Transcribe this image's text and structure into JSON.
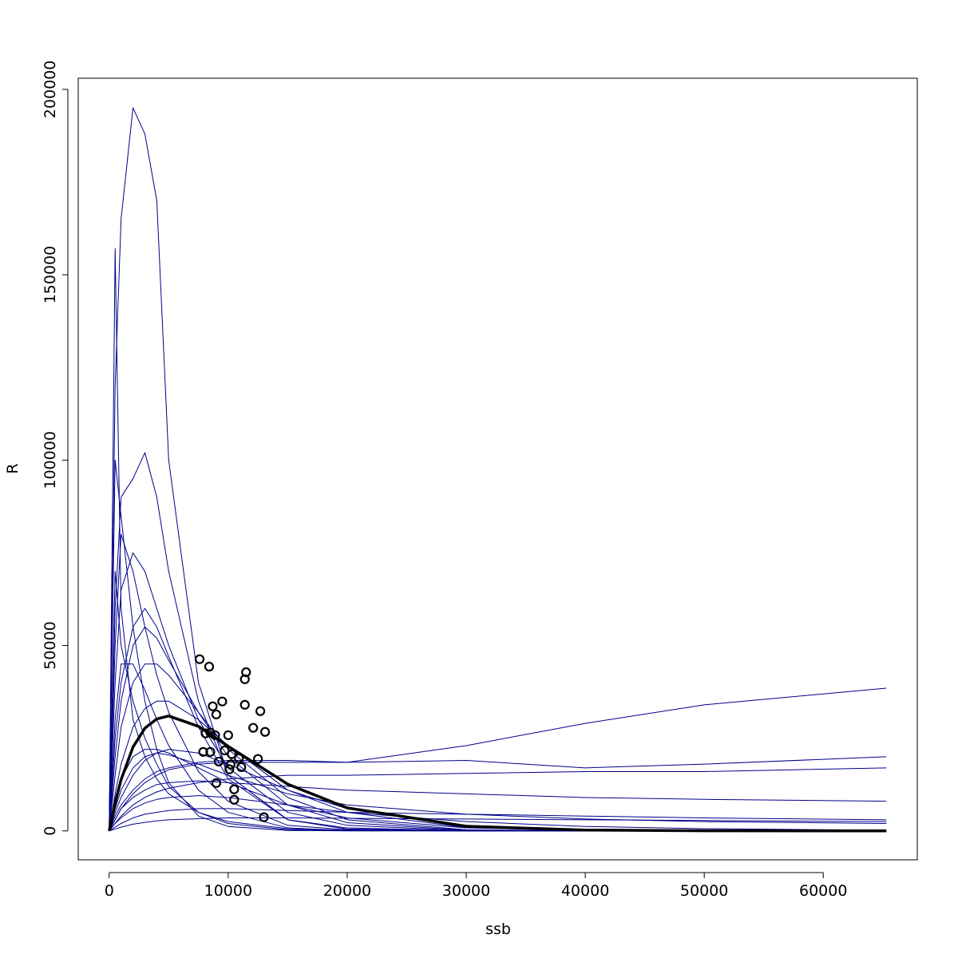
{
  "chart_data": {
    "type": "line",
    "xlabel": "ssb",
    "ylabel": "R",
    "xlim": [
      -2600,
      67900
    ],
    "ylim": [
      -7800,
      203000
    ],
    "xticks": [
      0,
      10000,
      20000,
      30000,
      40000,
      50000,
      60000
    ],
    "yticks": [
      0,
      50000,
      100000,
      150000,
      200000
    ],
    "x": [
      0,
      500,
      1000,
      2000,
      3000,
      4000,
      5000,
      7500,
      10000,
      15000,
      20000,
      30000,
      40000,
      50000,
      65300
    ],
    "series": [
      {
        "color": "#00008b",
        "linewidth": 1,
        "values": [
          0,
          120000,
          165000,
          195000,
          188000,
          170000,
          100000,
          40000,
          15000,
          3000,
          800,
          50,
          5,
          0,
          0
        ]
      },
      {
        "color": "#00008b",
        "linewidth": 1,
        "values": [
          0,
          157000,
          60000,
          30000,
          20000,
          14000,
          10000,
          5000,
          2500,
          600,
          150,
          10,
          0,
          0,
          0
        ]
      },
      {
        "color": "#00008b",
        "linewidth": 1,
        "values": [
          0,
          60000,
          90000,
          95000,
          102000,
          90000,
          70000,
          35000,
          15000,
          3000,
          500,
          20,
          0,
          0,
          0
        ]
      },
      {
        "color": "#00008b",
        "linewidth": 1,
        "values": [
          0,
          3000,
          6000,
          10000,
          13000,
          15000,
          16500,
          18000,
          18500,
          18500,
          18500,
          23000,
          29000,
          34000,
          38500
        ]
      },
      {
        "color": "#00008b",
        "linewidth": 1,
        "values": [
          0,
          4000,
          7000,
          11000,
          14000,
          16000,
          17000,
          18500,
          19000,
          19000,
          18500,
          19000,
          17000,
          18000,
          20000
        ]
      },
      {
        "color": "#00008b",
        "linewidth": 1,
        "values": [
          0,
          2000,
          4000,
          7000,
          9000,
          10500,
          11500,
          13000,
          14000,
          15000,
          15000,
          15500,
          16000,
          16000,
          17000
        ]
      },
      {
        "color": "#00008b",
        "linewidth": 1,
        "values": [
          0,
          3000,
          6000,
          9000,
          11000,
          12500,
          13000,
          13500,
          13000,
          12000,
          11000,
          10000,
          9000,
          8500,
          8000
        ]
      },
      {
        "color": "#00008b",
        "linewidth": 1,
        "values": [
          0,
          40000,
          65000,
          75000,
          70000,
          60000,
          50000,
          30000,
          17000,
          5000,
          1500,
          100,
          10,
          0,
          0
        ]
      },
      {
        "color": "#00008b",
        "linewidth": 1,
        "values": [
          0,
          50000,
          80000,
          70000,
          55000,
          42000,
          32000,
          16000,
          8000,
          1500,
          300,
          10,
          0,
          0,
          0
        ]
      },
      {
        "color": "#00008b",
        "linewidth": 1,
        "values": [
          0,
          20000,
          35000,
          50000,
          55000,
          52000,
          46000,
          32000,
          20000,
          7000,
          2200,
          200,
          20,
          2,
          0
        ]
      },
      {
        "color": "#00008b",
        "linewidth": 1,
        "values": [
          0,
          10000,
          18000,
          28000,
          33000,
          35000,
          35000,
          30000,
          23000,
          11000,
          5000,
          900,
          150,
          20,
          1
        ]
      },
      {
        "color": "#00008b",
        "linewidth": 1,
        "values": [
          0,
          5000,
          9000,
          15000,
          19000,
          21000,
          22000,
          21000,
          18000,
          11000,
          6000,
          1500,
          300,
          60,
          5
        ]
      },
      {
        "color": "#00008b",
        "linewidth": 1,
        "values": [
          0,
          8000,
          14000,
          20000,
          22000,
          22000,
          21000,
          17000,
          13000,
          7000,
          3500,
          800,
          200,
          40,
          5
        ]
      },
      {
        "color": "#00008b",
        "linewidth": 1,
        "values": [
          0,
          2000,
          3500,
          6000,
          7500,
          8500,
          9000,
          9500,
          9000,
          7000,
          5000,
          2500,
          1200,
          600,
          200
        ]
      },
      {
        "color": "#00008b",
        "linewidth": 1,
        "values": [
          0,
          1000,
          2000,
          3500,
          4500,
          5000,
          5500,
          6000,
          6000,
          5500,
          5000,
          4500,
          4000,
          3500,
          3000
        ]
      },
      {
        "color": "#00008b",
        "linewidth": 1,
        "values": [
          0,
          30000,
          45000,
          45000,
          38000,
          30000,
          23000,
          11000,
          5000,
          800,
          100,
          3,
          0,
          0,
          0
        ]
      },
      {
        "color": "#00008b",
        "linewidth": 1,
        "values": [
          0,
          70000,
          50000,
          35000,
          25000,
          18000,
          12000,
          5000,
          2000,
          300,
          40,
          1,
          0,
          0,
          0
        ]
      },
      {
        "color": "#00008b",
        "linewidth": 1,
        "values": [
          0,
          15000,
          28000,
          40000,
          45000,
          45000,
          42000,
          32000,
          22000,
          9000,
          3000,
          300,
          30,
          3,
          0
        ]
      },
      {
        "color": "#00008b",
        "linewidth": 1,
        "values": [
          0,
          100000,
          85000,
          55000,
          35000,
          22000,
          13000,
          4000,
          1200,
          100,
          5,
          0,
          0,
          0,
          0
        ]
      },
      {
        "color": "#00008b",
        "linewidth": 1,
        "values": [
          0,
          25000,
          40000,
          55000,
          60000,
          55000,
          47000,
          28000,
          14000,
          3000,
          500,
          10,
          0,
          0,
          0
        ]
      },
      {
        "color": "#00008b",
        "linewidth": 1,
        "values": [
          0,
          6000,
          11000,
          17000,
          20000,
          21000,
          20500,
          18000,
          15000,
          10000,
          7000,
          4500,
          3200,
          2500,
          2000
        ]
      },
      {
        "color": "#00008b",
        "linewidth": 1,
        "values": [
          0,
          500,
          1000,
          1800,
          2300,
          2700,
          3000,
          3300,
          3500,
          3500,
          3400,
          3200,
          3000,
          2800,
          2500
        ]
      },
      {
        "color": "#000000",
        "linewidth": 3.5,
        "values": [
          0,
          7600,
          13800,
          22600,
          27700,
          30200,
          31000,
          28200,
          22800,
          12600,
          6200,
          1250,
          230,
          40,
          2
        ]
      }
    ],
    "points": {
      "color": "#000000",
      "x": [
        7600,
        8400,
        11500,
        11400,
        9500,
        8700,
        11400,
        12700,
        9000,
        12100,
        13100,
        8100,
        8500,
        8900,
        10000,
        7900,
        8500,
        9700,
        10300,
        10900,
        12500,
        9200,
        10200,
        11100,
        10100,
        9000,
        10500,
        10500,
        13000
      ],
      "y": [
        46300,
        44300,
        42800,
        40900,
        34900,
        33600,
        34000,
        32300,
        31400,
        27800,
        26700,
        26300,
        26500,
        25800,
        25800,
        21300,
        21300,
        21700,
        20700,
        19600,
        19400,
        18700,
        17900,
        17200,
        16600,
        12900,
        11200,
        8400,
        3700
      ]
    }
  }
}
